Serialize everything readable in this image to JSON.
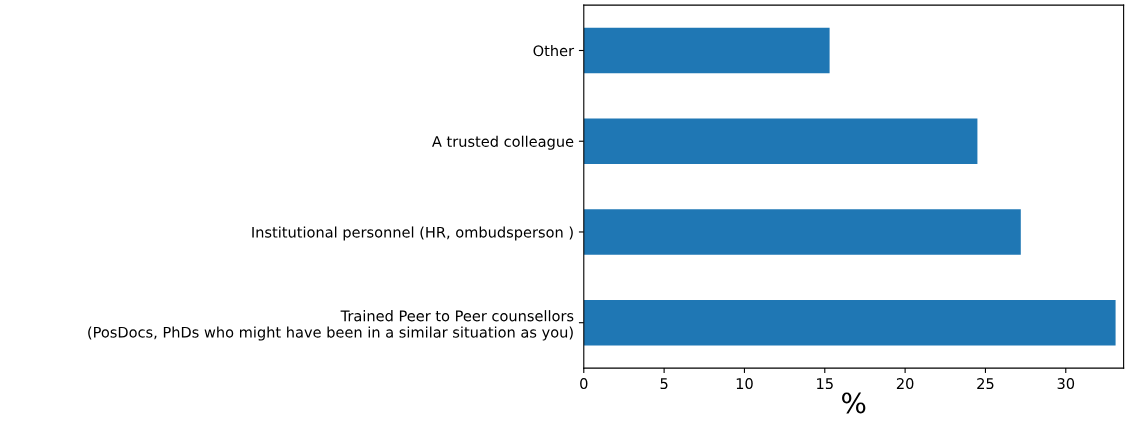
{
  "chart_data": {
    "type": "bar",
    "orientation": "horizontal",
    "xlabel": "%",
    "categories": [
      "Other",
      "A trusted colleague",
      "Institutional personnel (HR, ombudsperson )",
      "Trained Peer to Peer counsellors\n(PosDocs, PhDs who might have been in a similar situation as you)"
    ],
    "values": [
      15.3,
      24.5,
      27.2,
      33.1
    ],
    "color": "#1f77b4",
    "xlim": [
      0,
      33.6
    ],
    "xticks": [
      0,
      5,
      10,
      15,
      20,
      25,
      30
    ],
    "grid": false,
    "legend": false
  }
}
